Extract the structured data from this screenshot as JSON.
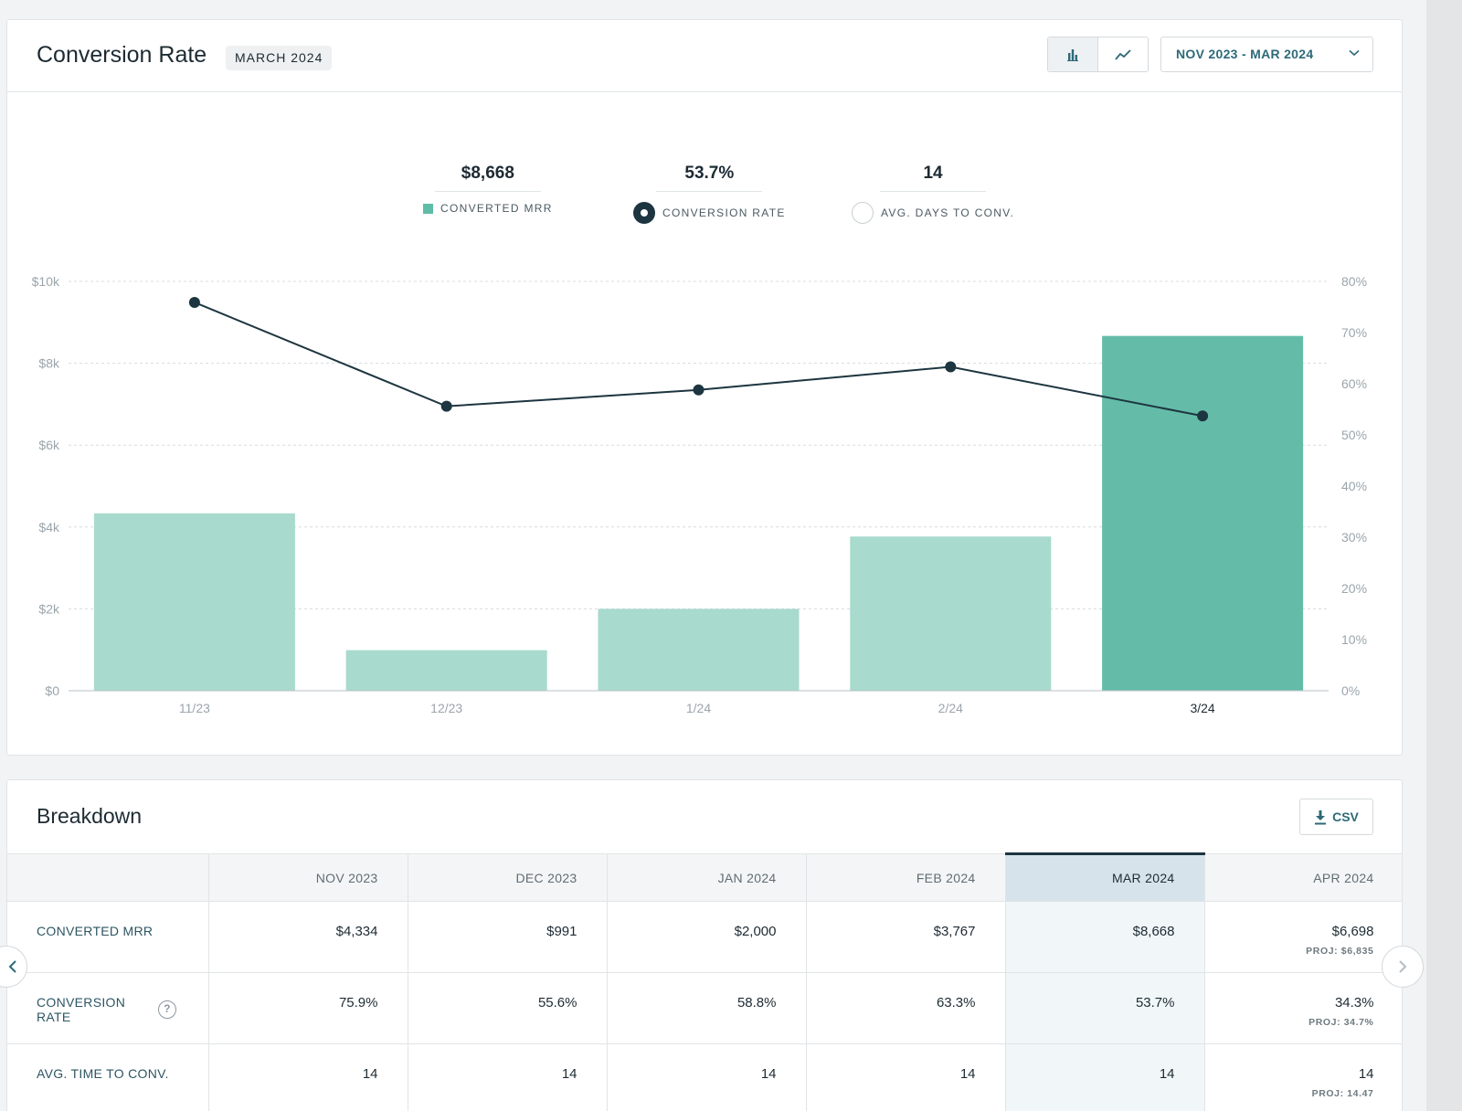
{
  "header": {
    "title": "Conversion Rate",
    "month_badge": "MARCH 2024",
    "date_range": "NOV 2023 - MAR 2024",
    "view_bar_icon": "bar-chart-icon",
    "view_line_icon": "line-chart-icon"
  },
  "stats": [
    {
      "value": "$8,668",
      "label": "CONVERTED MRR"
    },
    {
      "value": "53.7%",
      "label": "CONVERSION RATE"
    },
    {
      "value": "14",
      "label": "AVG. DAYS TO CONV."
    }
  ],
  "chart_data": {
    "type": "bar",
    "categories": [
      "11/23",
      "12/23",
      "1/24",
      "2/24",
      "3/24"
    ],
    "series": [
      {
        "name": "CONVERTED MRR",
        "type": "bar",
        "axis": "left",
        "values": [
          4334,
          991,
          2000,
          3767,
          8668
        ]
      },
      {
        "name": "CONVERSION RATE",
        "type": "line",
        "axis": "right",
        "values": [
          75.9,
          55.6,
          58.8,
          63.3,
          53.7
        ]
      }
    ],
    "y_left": {
      "min": 0,
      "max": 10000,
      "ticks": [
        "$0",
        "$2k",
        "$4k",
        "$6k",
        "$8k",
        "$10k"
      ]
    },
    "y_right": {
      "min": 0,
      "max": 80,
      "ticks": [
        "0%",
        "10%",
        "20%",
        "30%",
        "40%",
        "50%",
        "60%",
        "70%",
        "80%"
      ]
    },
    "highlighted_category": "3/24",
    "grid": true,
    "colors": {
      "bar": "#a8dacd",
      "bar_highlight": "#64bca8",
      "line": "#1d3540"
    }
  },
  "breakdown": {
    "title": "Breakdown",
    "csv_label": "CSV",
    "columns": [
      "NOV 2023",
      "DEC 2023",
      "JAN 2024",
      "FEB 2024",
      "MAR 2024",
      "APR 2024"
    ],
    "current_column": "MAR 2024",
    "rows": [
      {
        "label": "CONVERTED MRR",
        "values": [
          "$4,334",
          "$991",
          "$2,000",
          "$3,767",
          "$8,668",
          "$6,698"
        ],
        "proj": "PROJ: $6,835"
      },
      {
        "label": "CONVERSION RATE",
        "values": [
          "75.9%",
          "55.6%",
          "58.8%",
          "63.3%",
          "53.7%",
          "34.3%"
        ],
        "proj": "PROJ: 34.7%"
      },
      {
        "label": "AVG. TIME TO CONV.",
        "values": [
          "14",
          "14",
          "14",
          "14",
          "14",
          "14"
        ],
        "proj": "PROJ: 14.47"
      }
    ]
  }
}
